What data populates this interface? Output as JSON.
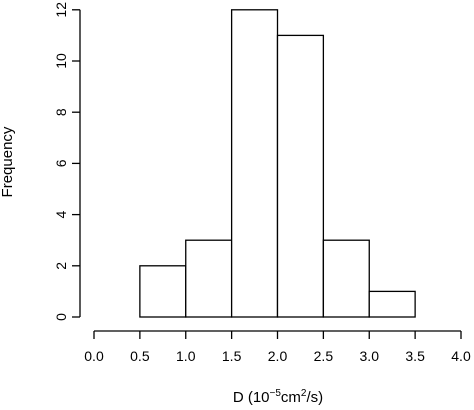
{
  "chart_data": {
    "type": "bar",
    "bins": [
      {
        "start": 0.5,
        "end": 1.0,
        "count": 2
      },
      {
        "start": 1.0,
        "end": 1.5,
        "count": 3
      },
      {
        "start": 1.5,
        "end": 2.0,
        "count": 12
      },
      {
        "start": 2.0,
        "end": 2.5,
        "count": 11
      },
      {
        "start": 2.5,
        "end": 3.0,
        "count": 3
      },
      {
        "start": 3.0,
        "end": 3.5,
        "count": 1
      }
    ],
    "xticks": [
      "0.0",
      "0.5",
      "1.0",
      "1.5",
      "2.0",
      "2.5",
      "3.0",
      "3.5",
      "4.0"
    ],
    "xtick_values": [
      0.0,
      0.5,
      1.0,
      1.5,
      2.0,
      2.5,
      3.0,
      3.5,
      4.0
    ],
    "yticks": [
      "0",
      "2",
      "4",
      "6",
      "8",
      "10",
      "12"
    ],
    "ytick_values": [
      0,
      2,
      4,
      6,
      8,
      10,
      12
    ],
    "xlim": [
      0.0,
      4.0
    ],
    "ylim": [
      0,
      12
    ],
    "xlabel": "D (10⁻⁵cm²/s)",
    "ylabel": "Frequency",
    "title": "",
    "grid": false,
    "bar_fill": "#ffffff",
    "bar_stroke": "#000000"
  }
}
